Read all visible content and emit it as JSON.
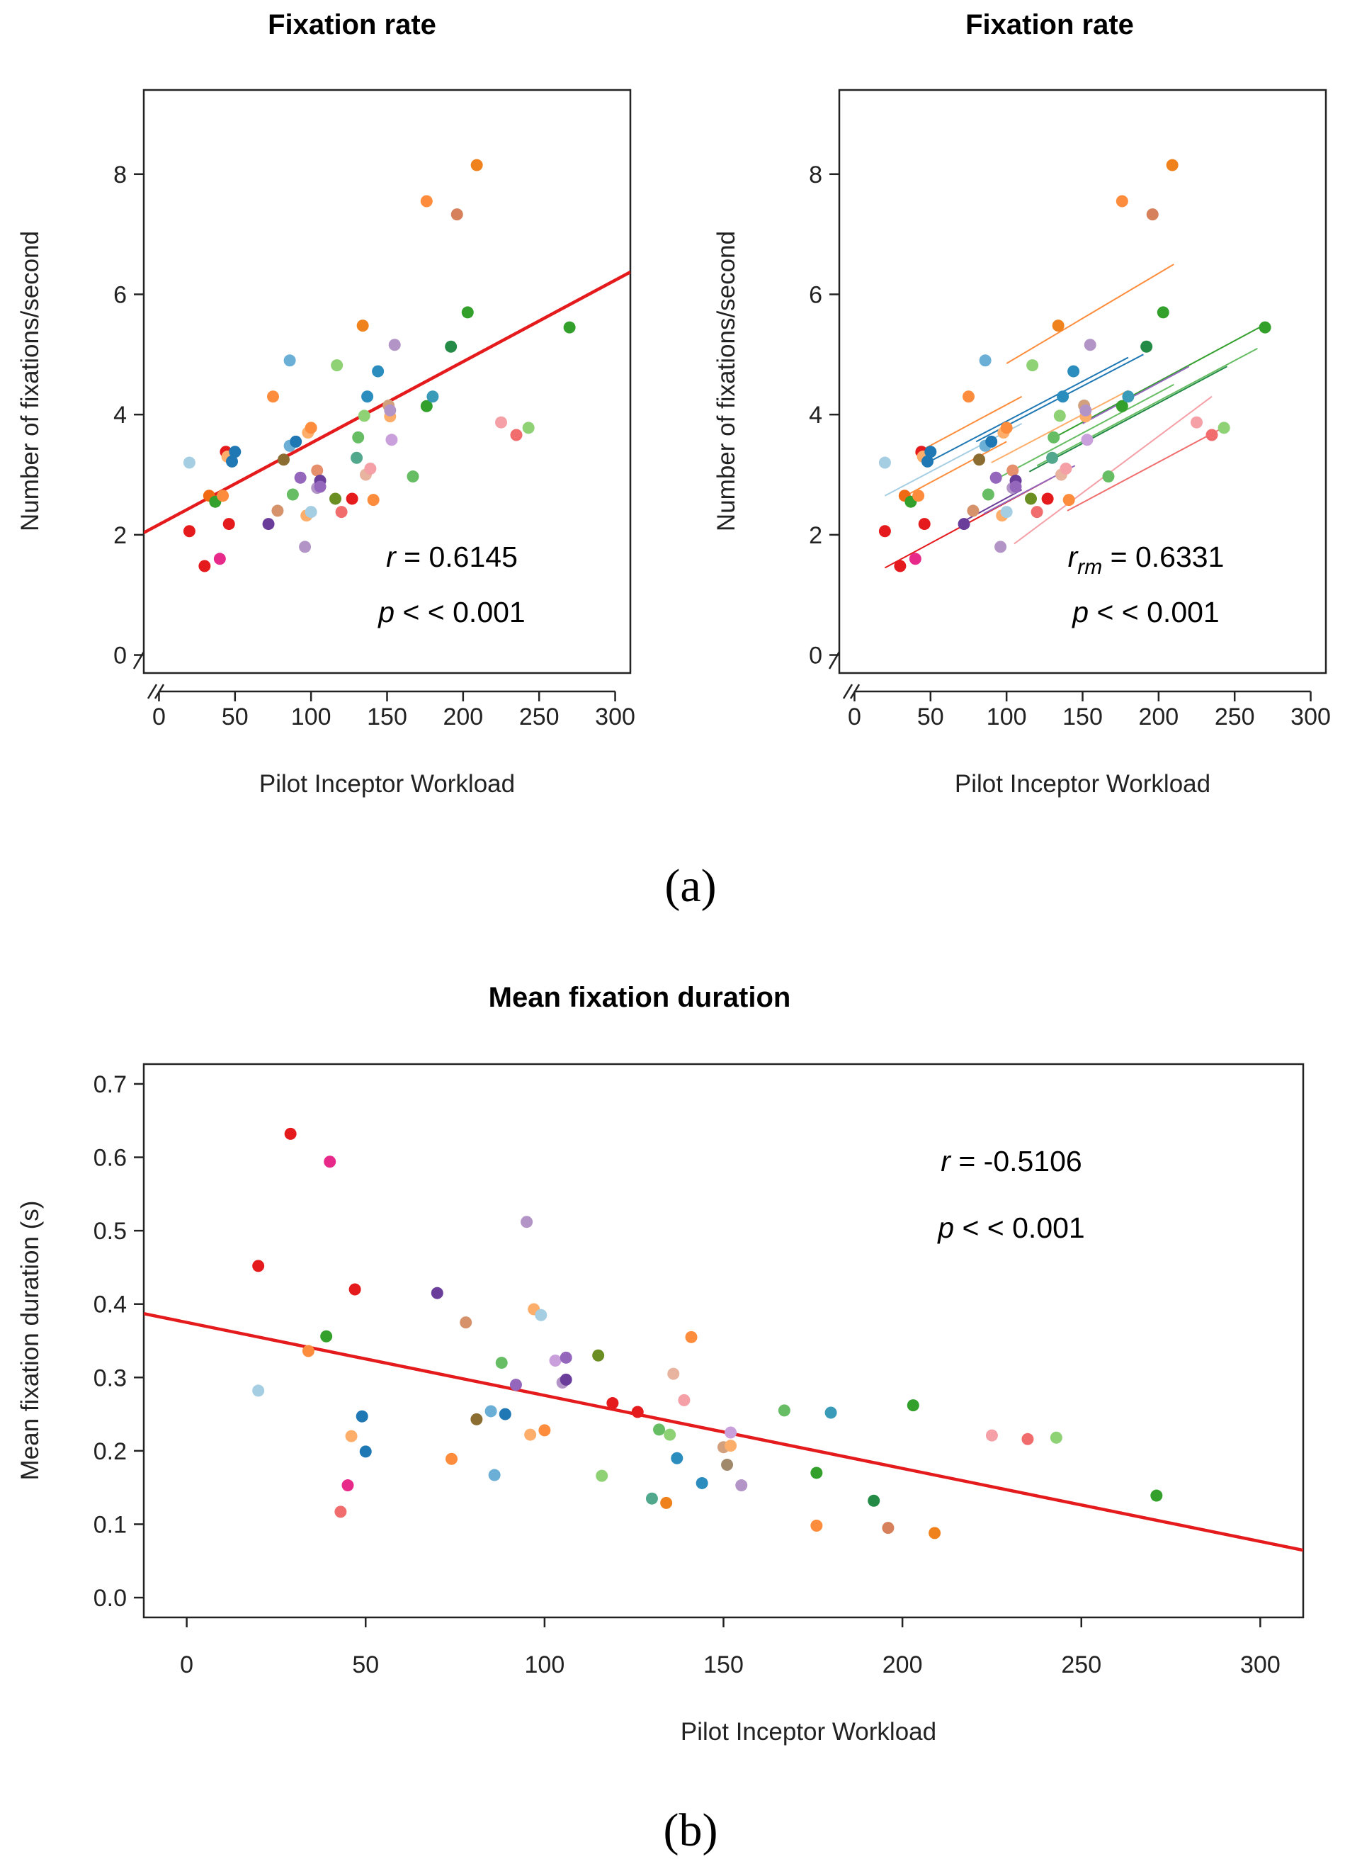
{
  "chart_data": [
    {
      "type": "scatter",
      "id": "a1",
      "title": "Fixation rate",
      "xlabel": "Pilot Inceptor Workload",
      "ylabel": "Number of fixations/second",
      "xlim": [
        -10,
        310
      ],
      "ylim": [
        -0.3,
        9.4
      ],
      "xticks": [
        0,
        50,
        100,
        150,
        200,
        250,
        300
      ],
      "yticks": [
        0,
        2,
        4,
        6,
        8
      ],
      "annotation": {
        "stat_symbol": "r",
        "stat_sub": "",
        "stat_value": " = 0.6145",
        "p_symbol": "p",
        "p_value": " < < 0.001"
      },
      "fit_line": {
        "color": "#e41a1c",
        "intercept": 2.17,
        "slope": 0.01355
      },
      "points": [
        {
          "x": 20,
          "y": 3.2,
          "c": "#a6cee3"
        },
        {
          "x": 20,
          "y": 2.06,
          "c": "#e41a1c"
        },
        {
          "x": 30,
          "y": 1.48,
          "c": "#e41a1c"
        },
        {
          "x": 33,
          "y": 2.65,
          "c": "#f16913"
        },
        {
          "x": 37,
          "y": 2.55,
          "c": "#33a02c"
        },
        {
          "x": 40,
          "y": 1.6,
          "c": "#e7298a"
        },
        {
          "x": 42,
          "y": 2.65,
          "c": "#fd8d3c"
        },
        {
          "x": 44,
          "y": 3.38,
          "c": "#e41a1c"
        },
        {
          "x": 45,
          "y": 3.3,
          "c": "#fdae6b"
        },
        {
          "x": 46,
          "y": 2.18,
          "c": "#e41a1c"
        },
        {
          "x": 48,
          "y": 3.22,
          "c": "#1f78b4"
        },
        {
          "x": 50,
          "y": 3.38,
          "c": "#1f78b4"
        },
        {
          "x": 75,
          "y": 4.3,
          "c": "#fd8d3c"
        },
        {
          "x": 72,
          "y": 2.18,
          "c": "#6a3d9a"
        },
        {
          "x": 78,
          "y": 2.4,
          "c": "#d6936b"
        },
        {
          "x": 82,
          "y": 3.25,
          "c": "#8c6d31"
        },
        {
          "x": 86,
          "y": 4.9,
          "c": "#6baed6"
        },
        {
          "x": 86,
          "y": 3.48,
          "c": "#6baed6"
        },
        {
          "x": 88,
          "y": 2.67,
          "c": "#66bd63"
        },
        {
          "x": 90,
          "y": 3.55,
          "c": "#1f78b4"
        },
        {
          "x": 93,
          "y": 2.95,
          "c": "#9467bd"
        },
        {
          "x": 96,
          "y": 1.8,
          "c": "#b294c7"
        },
        {
          "x": 97,
          "y": 2.32,
          "c": "#fdae6b"
        },
        {
          "x": 98,
          "y": 3.7,
          "c": "#fdae6b"
        },
        {
          "x": 100,
          "y": 2.38,
          "c": "#a6cee3"
        },
        {
          "x": 100,
          "y": 3.78,
          "c": "#fd8d3c"
        },
        {
          "x": 104,
          "y": 3.07,
          "c": "#e6906d"
        },
        {
          "x": 104,
          "y": 2.78,
          "c": "#b294c7"
        },
        {
          "x": 106,
          "y": 2.9,
          "c": "#6a3d9a"
        },
        {
          "x": 106,
          "y": 2.8,
          "c": "#9467bd"
        },
        {
          "x": 116,
          "y": 2.6,
          "c": "#6b8e23"
        },
        {
          "x": 117,
          "y": 4.82,
          "c": "#8fd175"
        },
        {
          "x": 120,
          "y": 2.38,
          "c": "#f16d6d"
        },
        {
          "x": 127,
          "y": 2.6,
          "c": "#e41a1c"
        },
        {
          "x": 130,
          "y": 3.28,
          "c": "#52a88c"
        },
        {
          "x": 131,
          "y": 3.62,
          "c": "#66bd63"
        },
        {
          "x": 134,
          "y": 5.48,
          "c": "#f0821e"
        },
        {
          "x": 135,
          "y": 3.98,
          "c": "#8fd175"
        },
        {
          "x": 136,
          "y": 3.0,
          "c": "#e8b4a0"
        },
        {
          "x": 137,
          "y": 4.3,
          "c": "#2b8cbe"
        },
        {
          "x": 139,
          "y": 3.1,
          "c": "#f4a0a6"
        },
        {
          "x": 141,
          "y": 2.58,
          "c": "#fd8d3c"
        },
        {
          "x": 144,
          "y": 4.72,
          "c": "#2b8cbe"
        },
        {
          "x": 151,
          "y": 4.15,
          "c": "#d2a07c"
        },
        {
          "x": 152,
          "y": 3.97,
          "c": "#fdae6b"
        },
        {
          "x": 152,
          "y": 4.07,
          "c": "#b294c7"
        },
        {
          "x": 153,
          "y": 3.58,
          "c": "#c9a0dc"
        },
        {
          "x": 155,
          "y": 5.16,
          "c": "#b294c7"
        },
        {
          "x": 167,
          "y": 2.97,
          "c": "#66bd63"
        },
        {
          "x": 176,
          "y": 7.55,
          "c": "#fd8d3c"
        },
        {
          "x": 176,
          "y": 4.14,
          "c": "#33a02c"
        },
        {
          "x": 180,
          "y": 4.3,
          "c": "#3a9bb8"
        },
        {
          "x": 192,
          "y": 5.13,
          "c": "#238b45"
        },
        {
          "x": 196,
          "y": 7.33,
          "c": "#d6815c"
        },
        {
          "x": 203,
          "y": 5.7,
          "c": "#33a02c"
        },
        {
          "x": 209,
          "y": 8.15,
          "c": "#f0821e"
        },
        {
          "x": 225,
          "y": 3.87,
          "c": "#f4a0a6"
        },
        {
          "x": 235,
          "y": 3.66,
          "c": "#f16d6d"
        },
        {
          "x": 243,
          "y": 3.78,
          "c": "#8fd175"
        },
        {
          "x": 270,
          "y": 5.45,
          "c": "#33a02c"
        }
      ]
    },
    {
      "type": "scatter",
      "id": "a2",
      "title": "Fixation rate",
      "xlabel": "Pilot Inceptor Workload",
      "ylabel": "Number of fixations/second",
      "xlim": [
        -10,
        310
      ],
      "ylim": [
        -0.3,
        9.4
      ],
      "xticks": [
        0,
        50,
        100,
        150,
        200,
        250,
        300
      ],
      "yticks": [
        0,
        2,
        4,
        6,
        8
      ],
      "annotation": {
        "stat_symbol": "r",
        "stat_sub": "rm",
        "stat_value": " = 0.6331",
        "p_symbol": "p",
        "p_value": " < < 0.001"
      },
      "fit_lines": [
        {
          "x1": 20,
          "y1": 2.65,
          "x2": 110,
          "y2": 3.85,
          "c": "#a6cee3"
        },
        {
          "x1": 20,
          "y1": 1.45,
          "x2": 130,
          "y2": 2.95,
          "c": "#e41a1c"
        },
        {
          "x1": 30,
          "y1": 2.6,
          "x2": 100,
          "y2": 3.55,
          "c": "#fd8d3c"
        },
        {
          "x1": 40,
          "y1": 3.35,
          "x2": 110,
          "y2": 4.3,
          "c": "#fd8d3c"
        },
        {
          "x1": 48,
          "y1": 3.2,
          "x2": 180,
          "y2": 4.95,
          "c": "#1f78b4"
        },
        {
          "x1": 70,
          "y1": 2.2,
          "x2": 110,
          "y2": 2.75,
          "c": "#6a3d9a"
        },
        {
          "x1": 80,
          "y1": 3.55,
          "x2": 190,
          "y2": 5.0,
          "c": "#1f78b4"
        },
        {
          "x1": 85,
          "y1": 2.35,
          "x2": 145,
          "y2": 3.15,
          "c": "#9467bd"
        },
        {
          "x1": 90,
          "y1": 3.2,
          "x2": 180,
          "y2": 4.4,
          "c": "#fdae6b"
        },
        {
          "x1": 95,
          "y1": 2.95,
          "x2": 210,
          "y2": 4.5,
          "c": "#66bd63"
        },
        {
          "x1": 100,
          "y1": 4.85,
          "x2": 210,
          "y2": 6.5,
          "c": "#fd8d3c"
        },
        {
          "x1": 115,
          "y1": 3.05,
          "x2": 245,
          "y2": 4.8,
          "c": "#238b45"
        },
        {
          "x1": 120,
          "y1": 3.15,
          "x2": 265,
          "y2": 5.1,
          "c": "#66bd63"
        },
        {
          "x1": 130,
          "y1": 3.6,
          "x2": 270,
          "y2": 5.5,
          "c": "#33a02c"
        },
        {
          "x1": 150,
          "y1": 3.85,
          "x2": 220,
          "y2": 4.8,
          "c": "#9467bd"
        },
        {
          "x1": 140,
          "y1": 2.4,
          "x2": 240,
          "y2": 3.75,
          "c": "#f16d6d"
        },
        {
          "x1": 105,
          "y1": 1.85,
          "x2": 235,
          "y2": 4.3,
          "c": "#f4a0a6"
        }
      ],
      "points_ref": "a1"
    },
    {
      "type": "scatter",
      "id": "b",
      "title": "Mean fixation duration",
      "xlabel": "Pilot Inceptor Workload",
      "ylabel": "Mean fixation duration (s)",
      "xlim": [
        -12,
        312
      ],
      "ylim": [
        -0.027,
        0.727
      ],
      "xticks": [
        0,
        50,
        100,
        150,
        200,
        250,
        300
      ],
      "yticks": [
        0.0,
        0.1,
        0.2,
        0.3,
        0.4,
        0.5,
        0.6,
        0.7
      ],
      "ytick_labels": [
        "0.0",
        "0.1",
        "0.2",
        "0.3",
        "0.4",
        "0.5",
        "0.6",
        "0.7"
      ],
      "annotation": {
        "stat_symbol": "r",
        "stat_sub": "",
        "stat_value": " = -0.5106",
        "p_symbol": "p",
        "p_value": " < < 0.001"
      },
      "fit_line": {
        "color": "#e41a1c",
        "intercept": 0.375,
        "slope": -0.000995
      },
      "points": [
        {
          "x": 20,
          "y": 0.452,
          "c": "#e41a1c"
        },
        {
          "x": 20,
          "y": 0.282,
          "c": "#a6cee3"
        },
        {
          "x": 29,
          "y": 0.632,
          "c": "#e41a1c"
        },
        {
          "x": 34,
          "y": 0.336,
          "c": "#fd8d3c"
        },
        {
          "x": 39,
          "y": 0.356,
          "c": "#33a02c"
        },
        {
          "x": 40,
          "y": 0.594,
          "c": "#e7298a"
        },
        {
          "x": 43,
          "y": 0.117,
          "c": "#f16d6d"
        },
        {
          "x": 45,
          "y": 0.153,
          "c": "#e7298a"
        },
        {
          "x": 46,
          "y": 0.22,
          "c": "#fdae6b"
        },
        {
          "x": 47,
          "y": 0.42,
          "c": "#e41a1c"
        },
        {
          "x": 49,
          "y": 0.247,
          "c": "#1f78b4"
        },
        {
          "x": 50,
          "y": 0.199,
          "c": "#1f78b4"
        },
        {
          "x": 70,
          "y": 0.415,
          "c": "#6a3d9a"
        },
        {
          "x": 74,
          "y": 0.189,
          "c": "#fd8d3c"
        },
        {
          "x": 78,
          "y": 0.375,
          "c": "#d6936b"
        },
        {
          "x": 81,
          "y": 0.243,
          "c": "#8c6d31"
        },
        {
          "x": 85,
          "y": 0.254,
          "c": "#6baed6"
        },
        {
          "x": 86,
          "y": 0.167,
          "c": "#6baed6"
        },
        {
          "x": 88,
          "y": 0.32,
          "c": "#66bd63"
        },
        {
          "x": 89,
          "y": 0.25,
          "c": "#1f78b4"
        },
        {
          "x": 92,
          "y": 0.29,
          "c": "#9467bd"
        },
        {
          "x": 95,
          "y": 0.512,
          "c": "#b294c7"
        },
        {
          "x": 96,
          "y": 0.222,
          "c": "#fdae6b"
        },
        {
          "x": 97,
          "y": 0.393,
          "c": "#fdae6b"
        },
        {
          "x": 99,
          "y": 0.385,
          "c": "#a6cee3"
        },
        {
          "x": 100,
          "y": 0.228,
          "c": "#fd8d3c"
        },
        {
          "x": 103,
          "y": 0.323,
          "c": "#c9a0dc"
        },
        {
          "x": 105,
          "y": 0.293,
          "c": "#b294c7"
        },
        {
          "x": 106,
          "y": 0.327,
          "c": "#9467bd"
        },
        {
          "x": 106,
          "y": 0.297,
          "c": "#6a3d9a"
        },
        {
          "x": 115,
          "y": 0.33,
          "c": "#6b8e23"
        },
        {
          "x": 116,
          "y": 0.166,
          "c": "#8fd175"
        },
        {
          "x": 119,
          "y": 0.265,
          "c": "#e41a1c"
        },
        {
          "x": 126,
          "y": 0.253,
          "c": "#e41a1c"
        },
        {
          "x": 130,
          "y": 0.135,
          "c": "#52a88c"
        },
        {
          "x": 132,
          "y": 0.229,
          "c": "#66bd63"
        },
        {
          "x": 134,
          "y": 0.129,
          "c": "#f0821e"
        },
        {
          "x": 135,
          "y": 0.222,
          "c": "#8fd175"
        },
        {
          "x": 136,
          "y": 0.305,
          "c": "#e8b4a0"
        },
        {
          "x": 137,
          "y": 0.19,
          "c": "#2b8cbe"
        },
        {
          "x": 139,
          "y": 0.269,
          "c": "#f4a0a6"
        },
        {
          "x": 141,
          "y": 0.355,
          "c": "#fd8d3c"
        },
        {
          "x": 144,
          "y": 0.156,
          "c": "#2b8cbe"
        },
        {
          "x": 150,
          "y": 0.205,
          "c": "#d2a07c"
        },
        {
          "x": 151,
          "y": 0.181,
          "c": "#a0896b"
        },
        {
          "x": 152,
          "y": 0.207,
          "c": "#fdae6b"
        },
        {
          "x": 152,
          "y": 0.225,
          "c": "#c9a0dc"
        },
        {
          "x": 155,
          "y": 0.153,
          "c": "#b294c7"
        },
        {
          "x": 167,
          "y": 0.255,
          "c": "#66bd63"
        },
        {
          "x": 176,
          "y": 0.098,
          "c": "#fd8d3c"
        },
        {
          "x": 176,
          "y": 0.17,
          "c": "#33a02c"
        },
        {
          "x": 180,
          "y": 0.252,
          "c": "#3a9bb8"
        },
        {
          "x": 192,
          "y": 0.132,
          "c": "#238b45"
        },
        {
          "x": 196,
          "y": 0.095,
          "c": "#d6815c"
        },
        {
          "x": 203,
          "y": 0.262,
          "c": "#33a02c"
        },
        {
          "x": 209,
          "y": 0.088,
          "c": "#f0821e"
        },
        {
          "x": 225,
          "y": 0.221,
          "c": "#f4a0a6"
        },
        {
          "x": 235,
          "y": 0.216,
          "c": "#f16d6d"
        },
        {
          "x": 243,
          "y": 0.218,
          "c": "#8fd175"
        },
        {
          "x": 271,
          "y": 0.139,
          "c": "#33a02c"
        }
      ]
    }
  ],
  "captions": {
    "a": "(a)",
    "b": "(b)"
  }
}
